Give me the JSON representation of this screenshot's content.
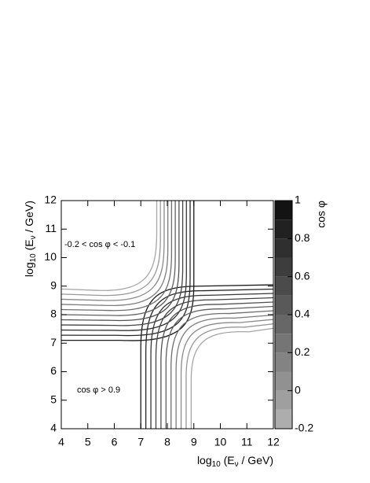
{
  "chart_data": {
    "type": "contour",
    "xlabel_parts": [
      "log",
      "10",
      " (E",
      "ν",
      " / GeV)"
    ],
    "ylabel_parts": [
      "log",
      "10",
      " (E",
      "ν",
      " / GeV)"
    ],
    "colorbar_label": "cos φ",
    "annotations": [
      "-0.2 < cos φ < -0.1",
      "cos φ > 0.9"
    ],
    "xlim": [
      4,
      12
    ],
    "xticks": [
      4,
      5,
      6,
      7,
      8,
      9,
      10,
      11,
      12
    ],
    "ylim": [
      4,
      12
    ],
    "yticks": [
      4,
      5,
      6,
      7,
      8,
      9,
      10,
      11,
      12
    ],
    "clim": [
      -0.2,
      1
    ],
    "cticks": [
      -0.2,
      0,
      0.2,
      0.4,
      0.6,
      0.8,
      1
    ],
    "colorscale": [
      "#b4b4b4",
      "#0c0c0c"
    ],
    "contour_levels": [
      0.9,
      0.8,
      0.7,
      0.6,
      0.5,
      0.4,
      0.3,
      0.2,
      0.1,
      0,
      -0.1
    ]
  }
}
